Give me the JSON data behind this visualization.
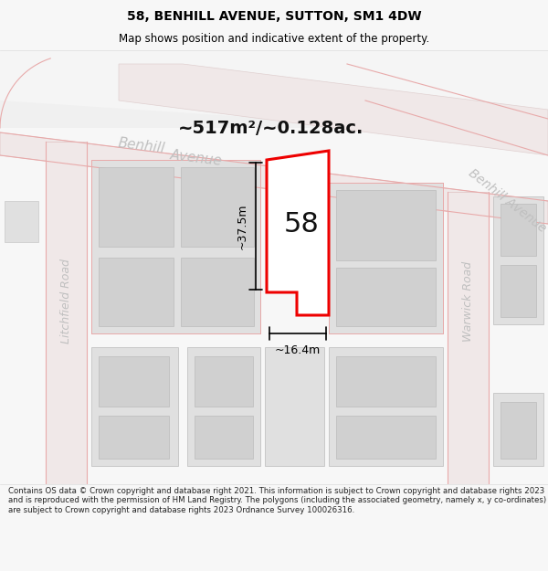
{
  "title": "58, BENHILL AVENUE, SUTTON, SM1 4DW",
  "subtitle": "Map shows position and indicative extent of the property.",
  "area_text": "~517m²/~0.128ac.",
  "label_58": "58",
  "dim_height": "~37.5m",
  "dim_width": "~16.4m",
  "footer": "Contains OS data © Crown copyright and database right 2021. This information is subject to Crown copyright and database rights 2023 and is reproduced with the permission of HM Land Registry. The polygons (including the associated geometry, namely x, y co-ordinates) are subject to Crown copyright and database rights 2023 Ordnance Survey 100026316.",
  "bg_color": "#f7f7f7",
  "map_bg": "#ffffff",
  "road_fill": "#f0e8e8",
  "road_edge": "#e0c0c0",
  "block_fill": "#e0e0e0",
  "block_edge": "#c8c8c8",
  "inner_fill": "#d0d0d0",
  "inner_edge": "#bbbbbb",
  "highlight_color": "#ee0000",
  "dim_color": "#000000",
  "title_color": "#000000",
  "road_label_color": "#bbbbbb",
  "area_label_color": "#111111",
  "footer_color": "#222222"
}
